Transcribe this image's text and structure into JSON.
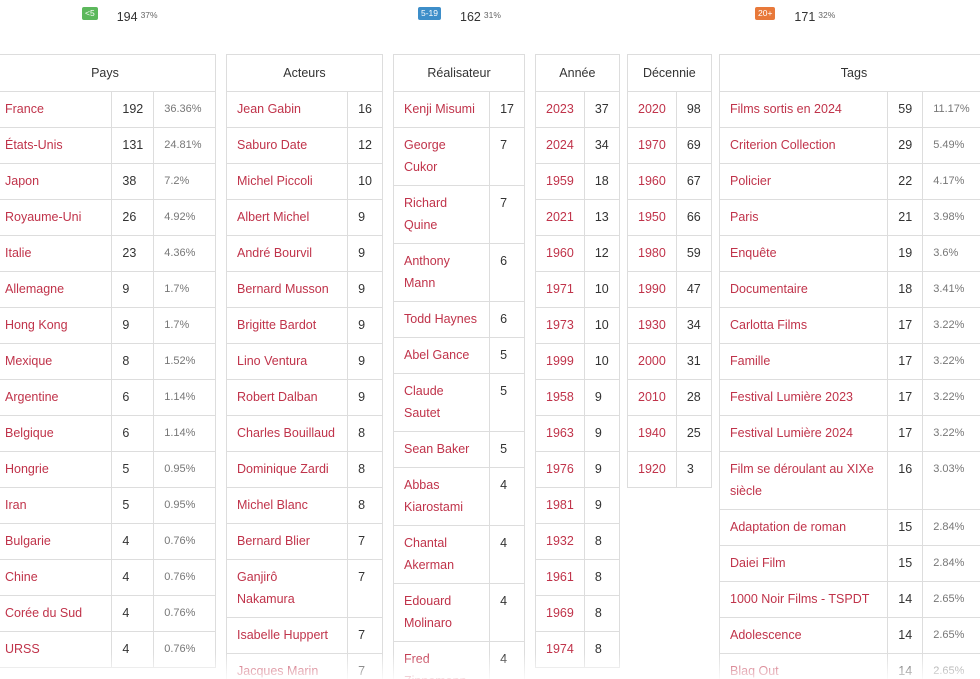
{
  "stats": [
    {
      "badge": "<5",
      "count": "194",
      "pct": "37%",
      "color": "#5cb85c"
    },
    {
      "badge": "5-19",
      "count": "162",
      "pct": "31%",
      "color": "#3d8ec9"
    },
    {
      "badge": "20+",
      "count": "171",
      "pct": "32%",
      "color": "#e8793a"
    }
  ],
  "tables": {
    "pays": {
      "header": "Pays",
      "rows": [
        {
          "name": "France",
          "count": "192",
          "pct": "36.36%"
        },
        {
          "name": "États-Unis",
          "count": "131",
          "pct": "24.81%"
        },
        {
          "name": "Japon",
          "count": "38",
          "pct": "7.2%"
        },
        {
          "name": "Royaume-Uni",
          "count": "26",
          "pct": "4.92%"
        },
        {
          "name": "Italie",
          "count": "23",
          "pct": "4.36%"
        },
        {
          "name": "Allemagne",
          "count": "9",
          "pct": "1.7%"
        },
        {
          "name": "Hong Kong",
          "count": "9",
          "pct": "1.7%"
        },
        {
          "name": "Mexique",
          "count": "8",
          "pct": "1.52%"
        },
        {
          "name": "Argentine",
          "count": "6",
          "pct": "1.14%"
        },
        {
          "name": "Belgique",
          "count": "6",
          "pct": "1.14%"
        },
        {
          "name": "Hongrie",
          "count": "5",
          "pct": "0.95%"
        },
        {
          "name": "Iran",
          "count": "5",
          "pct": "0.95%"
        },
        {
          "name": "Bulgarie",
          "count": "4",
          "pct": "0.76%"
        },
        {
          "name": "Chine",
          "count": "4",
          "pct": "0.76%"
        },
        {
          "name": "Corée du Sud",
          "count": "4",
          "pct": "0.76%"
        },
        {
          "name": "URSS",
          "count": "4",
          "pct": "0.76%"
        }
      ]
    },
    "acteurs": {
      "header": "Acteurs",
      "rows": [
        {
          "name": "Jean Gabin",
          "count": "16"
        },
        {
          "name": "Saburo Date",
          "count": "12"
        },
        {
          "name": "Michel Piccoli",
          "count": "10"
        },
        {
          "name": "Albert Michel",
          "count": "9"
        },
        {
          "name": "André Bourvil",
          "count": "9"
        },
        {
          "name": "Bernard Musson",
          "count": "9"
        },
        {
          "name": "Brigitte Bardot",
          "count": "9"
        },
        {
          "name": "Lino Ventura",
          "count": "9"
        },
        {
          "name": "Robert Dalban",
          "count": "9"
        },
        {
          "name": "Charles Bouillaud",
          "count": "8"
        },
        {
          "name": "Dominique Zardi",
          "count": "8"
        },
        {
          "name": "Michel Blanc",
          "count": "8"
        },
        {
          "name": "Bernard Blier",
          "count": "7"
        },
        {
          "name": "Ganjirô Nakamura",
          "count": "7"
        },
        {
          "name": "Isabelle Huppert",
          "count": "7"
        },
        {
          "name": "Jacques Marin",
          "count": "7"
        }
      ]
    },
    "realisateur": {
      "header": "Réalisateur",
      "rows": [
        {
          "name": "Kenji Misumi",
          "count": "17"
        },
        {
          "name": "George Cukor",
          "count": "7"
        },
        {
          "name": "Richard Quine",
          "count": "7"
        },
        {
          "name": "Anthony Mann",
          "count": "6"
        },
        {
          "name": "Todd Haynes",
          "count": "6"
        },
        {
          "name": "Abel Gance",
          "count": "5"
        },
        {
          "name": "Claude Sautet",
          "count": "5"
        },
        {
          "name": "Sean Baker",
          "count": "5"
        },
        {
          "name": "Abbas Kiarostami",
          "count": "4"
        },
        {
          "name": "Chantal Akerman",
          "count": "4"
        },
        {
          "name": "Edouard Molinaro",
          "count": "4"
        },
        {
          "name": "Fred Zinnemann",
          "count": "4"
        }
      ]
    },
    "annee": {
      "header": "Année",
      "rows": [
        {
          "name": "2023",
          "count": "37"
        },
        {
          "name": "2024",
          "count": "34"
        },
        {
          "name": "1959",
          "count": "18"
        },
        {
          "name": "2021",
          "count": "13"
        },
        {
          "name": "1960",
          "count": "12"
        },
        {
          "name": "1971",
          "count": "10"
        },
        {
          "name": "1973",
          "count": "10"
        },
        {
          "name": "1999",
          "count": "10"
        },
        {
          "name": "1958",
          "count": "9"
        },
        {
          "name": "1963",
          "count": "9"
        },
        {
          "name": "1976",
          "count": "9"
        },
        {
          "name": "1981",
          "count": "9"
        },
        {
          "name": "1932",
          "count": "8"
        },
        {
          "name": "1961",
          "count": "8"
        },
        {
          "name": "1969",
          "count": "8"
        },
        {
          "name": "1974",
          "count": "8"
        }
      ]
    },
    "decennie": {
      "header": "Décennie",
      "rows": [
        {
          "name": "2020",
          "count": "98"
        },
        {
          "name": "1970",
          "count": "69"
        },
        {
          "name": "1960",
          "count": "67"
        },
        {
          "name": "1950",
          "count": "66"
        },
        {
          "name": "1980",
          "count": "59"
        },
        {
          "name": "1990",
          "count": "47"
        },
        {
          "name": "1930",
          "count": "34"
        },
        {
          "name": "2000",
          "count": "31"
        },
        {
          "name": "2010",
          "count": "28"
        },
        {
          "name": "1940",
          "count": "25"
        },
        {
          "name": "1920",
          "count": "3"
        }
      ]
    },
    "tags": {
      "header": "Tags",
      "rows": [
        {
          "name": "Films sortis en 2024",
          "count": "59",
          "pct": "11.17%"
        },
        {
          "name": "Criterion Collection",
          "count": "29",
          "pct": "5.49%"
        },
        {
          "name": "Policier",
          "count": "22",
          "pct": "4.17%"
        },
        {
          "name": "Paris",
          "count": "21",
          "pct": "3.98%"
        },
        {
          "name": "Enquête",
          "count": "19",
          "pct": "3.6%"
        },
        {
          "name": "Documentaire",
          "count": "18",
          "pct": "3.41%"
        },
        {
          "name": "Carlotta Films",
          "count": "17",
          "pct": "3.22%"
        },
        {
          "name": "Famille",
          "count": "17",
          "pct": "3.22%"
        },
        {
          "name": "Festival Lumière 2023",
          "count": "17",
          "pct": "3.22%"
        },
        {
          "name": "Festival Lumière 2024",
          "count": "17",
          "pct": "3.22%"
        },
        {
          "name": "Film se déroulant au XIXe siècle",
          "count": "16",
          "pct": "3.03%"
        },
        {
          "name": "Adaptation de roman",
          "count": "15",
          "pct": "2.84%"
        },
        {
          "name": "Daiei Film",
          "count": "15",
          "pct": "2.84%"
        },
        {
          "name": "1000 Noir Films - TSPDT",
          "count": "14",
          "pct": "2.65%"
        },
        {
          "name": "Adolescence",
          "count": "14",
          "pct": "2.65%"
        },
        {
          "name": "Blaq Out",
          "count": "14",
          "pct": "2.65%"
        }
      ]
    }
  }
}
